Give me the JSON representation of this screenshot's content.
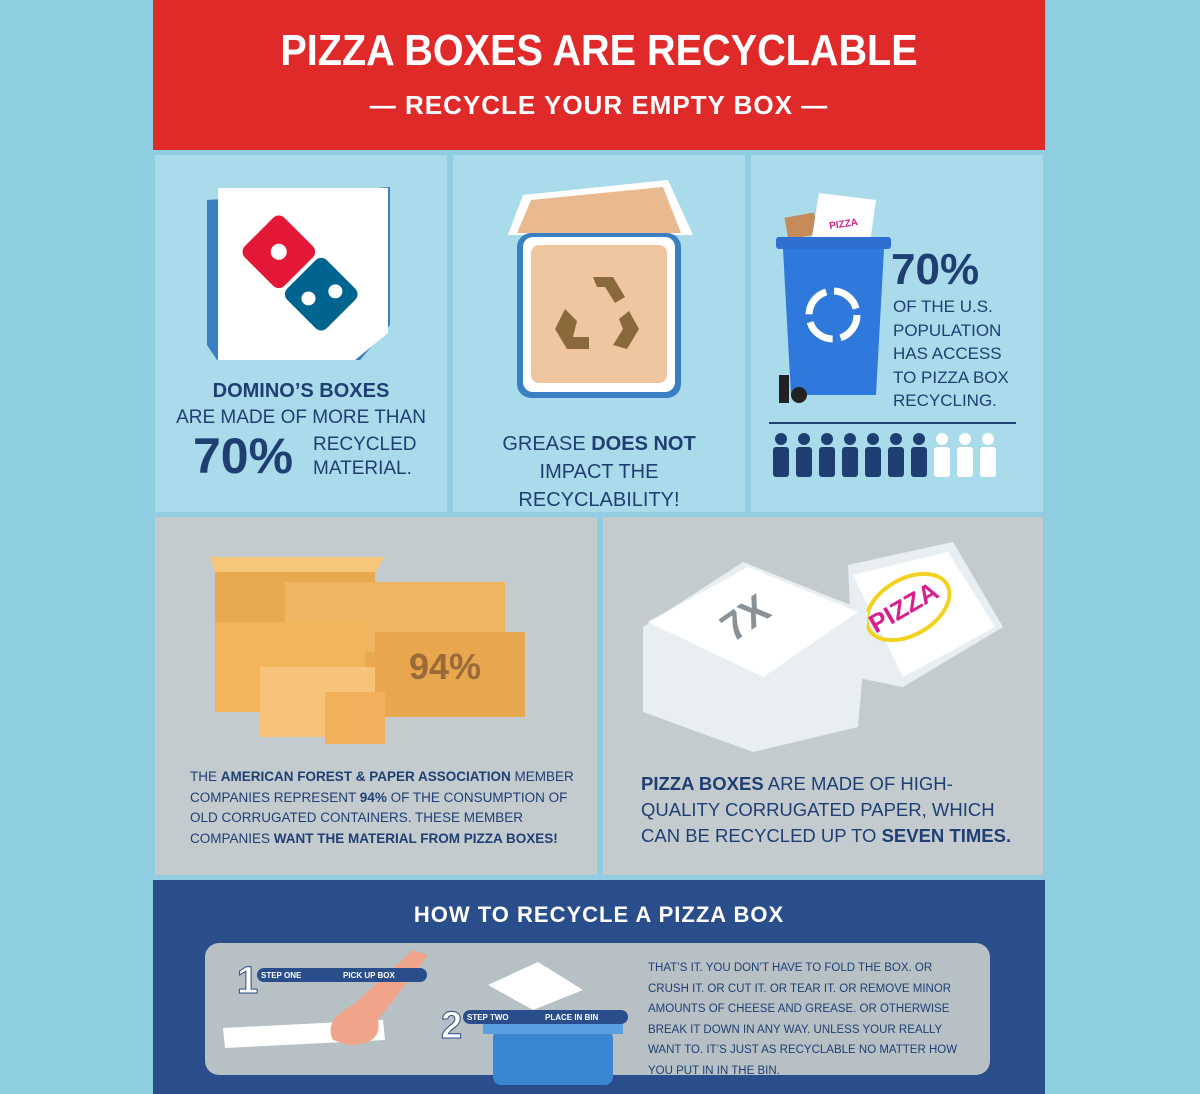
{
  "header": {
    "title": "PIZZA BOXES ARE RECYCLABLE",
    "subtitle": "RECYCLE YOUR EMPTY BOX"
  },
  "panels": [
    {
      "heading": "DOMINO’S BOXES",
      "line": "ARE MADE OF MORE THAN",
      "stat": "70%",
      "text": "RECYCLED MATERIAL."
    },
    {
      "text": [
        "GREASE ",
        "DOES NOT",
        " IMPACT THE RECYCLABILITY!"
      ]
    },
    {
      "bin_label": "PIZZA",
      "stat": "70%",
      "text": "OF THE U.S. POPULATION HAS ACCESS TO PIZZA BOX RECYCLING."
    },
    {
      "box_label": "94%",
      "text": [
        "THE ",
        "AMERICAN FOREST & PAPER ASSOCIATION",
        " MEMBER COMPANIES REPRESENT ",
        "94%",
        " OF THE CONSUMPTION OF OLD CORRUGATED CONTAINERS. THESE MEMBER COMPANIES ",
        "WANT THE MATERIAL FROM PIZZA BOXES!"
      ]
    },
    {
      "box_label": "7X",
      "lid_label": "PIZZA",
      "text": [
        "PIZZA BOXES",
        " ARE MADE OF HIGH-QUALITY CORRUGATED PAPER, WHICH CAN BE RECYCLED UP TO ",
        "SEVEN TIMES."
      ]
    }
  ],
  "how_to": {
    "title": "HOW TO RECYCLE A PIZZA BOX",
    "steps": [
      {
        "number": "1",
        "label": "STEP ONE",
        "action": "PICK UP BOX"
      },
      {
        "number": "2",
        "label": "STEP TWO",
        "action": "PLACE IN BIN"
      }
    ],
    "note": "THAT’S IT. YOU DON’T HAVE TO FOLD THE BOX. OR CRUSH IT. OR CUT IT. OR TEAR IT. OR REMOVE MINOR AMOUNTS OF CHEESE AND GREASE. OR OTHERWISE BREAK IT DOWN IN ANY WAY. UNLESS YOUR REALLY WANT TO. IT’S JUST AS RECYCLABLE NO MATTER HOW YOU PUT IN IN THE BIN."
  }
}
